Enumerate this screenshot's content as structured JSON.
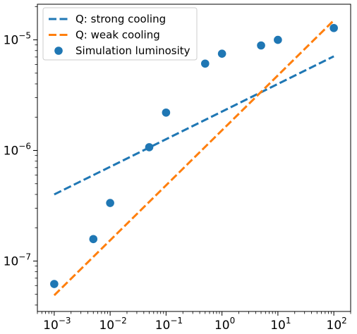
{
  "chart_data": {
    "type": "line",
    "title": "",
    "xlabel": "",
    "ylabel": "",
    "x_scale": "log",
    "y_scale": "log",
    "xlim": [
      0.0005,
      200
    ],
    "ylim": [
      3.5e-08,
      2.1e-05
    ],
    "grid": false,
    "legend_position": "top-left",
    "x_ticks": [
      {
        "base": "10",
        "exp": "−3",
        "value": 0.001
      },
      {
        "base": "10",
        "exp": "−2",
        "value": 0.01
      },
      {
        "base": "10",
        "exp": "−1",
        "value": 0.1
      },
      {
        "base": "10",
        "exp": "0",
        "value": 1
      },
      {
        "base": "10",
        "exp": "1",
        "value": 10
      },
      {
        "base": "10",
        "exp": "2",
        "value": 100
      }
    ],
    "y_ticks": [
      {
        "base": "10",
        "exp": "−7",
        "value": 1e-07
      },
      {
        "base": "10",
        "exp": "−6",
        "value": 1e-06
      },
      {
        "base": "10",
        "exp": "−5",
        "value": 1e-05
      }
    ],
    "series": [
      {
        "name": "Q: strong cooling",
        "style": "dashed",
        "color": "#1f77b4",
        "x": [
          0.001,
          100
        ],
        "y": [
          4e-07,
          7.1e-06
        ]
      },
      {
        "name": "Q: weak cooling",
        "style": "dashed",
        "color": "#ff7f0e",
        "x": [
          0.001,
          100
        ],
        "y": [
          4.9e-08,
          1.5e-05
        ]
      },
      {
        "name": "Simulation luminosity",
        "style": "scatter",
        "color": "#1f77b4",
        "x": [
          0.001,
          0.005,
          0.01,
          0.05,
          0.1,
          0.5,
          1,
          5,
          10,
          100
        ],
        "y": [
          6.2e-08,
          1.58e-07,
          3.35e-07,
          1.07e-06,
          2.2e-06,
          6.1e-06,
          7.5e-06,
          8.9e-06,
          1e-05,
          1.28e-05
        ]
      }
    ]
  }
}
